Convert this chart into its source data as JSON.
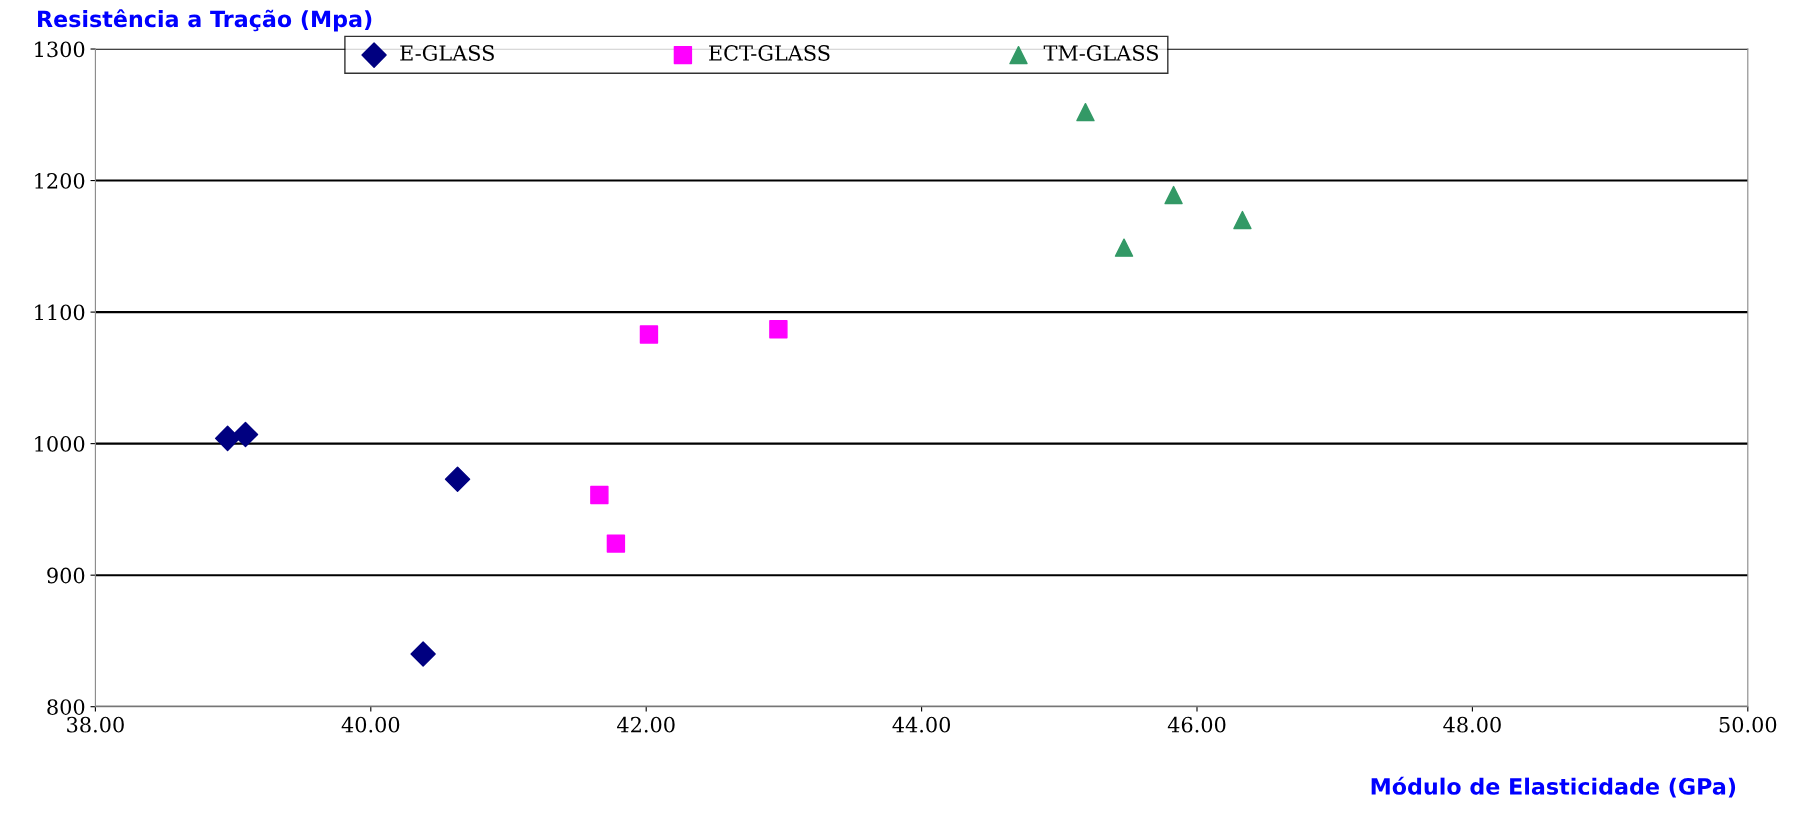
{
  "chart_data": {
    "type": "scatter",
    "xlabel": "Módulo de Elasticidade (GPa)",
    "ylabel": "Resistência a Tração (Mpa)",
    "xlim": [
      38,
      50
    ],
    "xticks": [
      {
        "value": 38,
        "label": "38.00"
      },
      {
        "value": 40,
        "label": "40.00"
      },
      {
        "value": 42,
        "label": "42.00"
      },
      {
        "value": 44,
        "label": "44.00"
      },
      {
        "value": 46,
        "label": "46.00"
      },
      {
        "value": 48,
        "label": "48.00"
      },
      {
        "value": 50,
        "label": "50.00"
      }
    ],
    "ylim": [
      800,
      1300
    ],
    "yticks": [
      800,
      900,
      1000,
      1100,
      1200,
      1300
    ],
    "grid": "y",
    "legend": "top",
    "series": [
      {
        "name": "E-GLASS",
        "color": "#000080",
        "marker": "diamond",
        "x": [
          38.96,
          39.09,
          40.63,
          40.38
        ],
        "values": [
          1004,
          1007,
          973,
          840
        ]
      },
      {
        "name": "ECT-GLASS",
        "color": "#ff00ff",
        "marker": "square",
        "x": [
          42.02,
          42.96,
          41.66,
          41.78
        ],
        "values": [
          1083,
          1087,
          961,
          924
        ]
      },
      {
        "name": "TM-GLASS",
        "color": "#339966",
        "marker": "triangle",
        "x": [
          45.19,
          45.83,
          45.47,
          46.33
        ],
        "values": [
          1252,
          1189,
          1149,
          1170
        ]
      }
    ]
  }
}
